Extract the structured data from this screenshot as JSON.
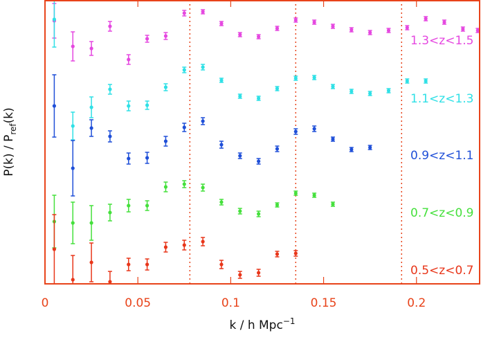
{
  "chart_data": {
    "type": "scatter",
    "xlabel": [
      "k / h Mpc",
      "−1"
    ],
    "ylabel": [
      "P(k) / P",
      "ref",
      "(k)"
    ],
    "xlim": [
      0,
      0.234
    ],
    "ylim": [
      0,
      410
    ],
    "xticks": [
      0,
      0.05,
      0.1,
      0.15,
      0.2
    ],
    "vlines": [
      0.078,
      0.135,
      0.192
    ],
    "axis_color": "#e8431a",
    "series": [
      {
        "name": "1.3<z<1.5",
        "color": "#e548e0",
        "x": [
          0.005,
          0.015,
          0.025,
          0.035,
          0.045,
          0.055,
          0.065,
          0.075,
          0.085,
          0.095,
          0.105,
          0.115,
          0.125,
          0.135,
          0.145,
          0.155,
          0.165,
          0.175,
          0.185,
          0.195,
          0.205,
          0.215,
          0.225,
          0.233
        ],
        "values": [
          380,
          343,
          340,
          372,
          324,
          354,
          358,
          391,
          393,
          376,
          360,
          357,
          369,
          381,
          378,
          372,
          367,
          363,
          366,
          370,
          383,
          378,
          368,
          366
        ],
        "errors": [
          25,
          21,
          10,
          7,
          7,
          5,
          5,
          4,
          3,
          3,
          3,
          3,
          3,
          3,
          3,
          3,
          3,
          3,
          3,
          3,
          3,
          3,
          3,
          3
        ]
      },
      {
        "name": "1.1<z<1.3",
        "color": "#2fe0e6",
        "x": [
          0.005,
          0.015,
          0.025,
          0.035,
          0.045,
          0.055,
          0.065,
          0.075,
          0.085,
          0.095,
          0.105,
          0.115,
          0.125,
          0.135,
          0.145,
          0.155,
          0.165,
          0.175,
          0.185,
          0.195,
          0.205
        ],
        "values": [
          382,
          228,
          255,
          281,
          257,
          258,
          284,
          309,
          313,
          294,
          271,
          268,
          282,
          297,
          298,
          285,
          278,
          275,
          279,
          293,
          293
        ],
        "errors": [
          40,
          20,
          15,
          7,
          7,
          6,
          5,
          4,
          4,
          3,
          3,
          3,
          3,
          3,
          3,
          3,
          3,
          3,
          3,
          3,
          3
        ]
      },
      {
        "name": "0.9<z<1.1",
        "color": "#1f4fd8",
        "x": [
          0.005,
          0.015,
          0.025,
          0.035,
          0.045,
          0.055,
          0.065,
          0.075,
          0.085,
          0.095,
          0.105,
          0.115,
          0.125,
          0.135,
          0.145,
          0.155,
          0.165,
          0.175
        ],
        "values": [
          257,
          167,
          225,
          213,
          181,
          182,
          206,
          226,
          235,
          201,
          185,
          177,
          195,
          220,
          224,
          209,
          194,
          197
        ],
        "errors": [
          45,
          40,
          12,
          8,
          8,
          8,
          7,
          6,
          5,
          5,
          4,
          4,
          4,
          4,
          4,
          3,
          3,
          3
        ]
      },
      {
        "name": "0.7<z<0.9",
        "color": "#45e03c",
        "x": [
          0.005,
          0.015,
          0.025,
          0.035,
          0.045,
          0.055,
          0.065,
          0.075,
          0.085,
          0.095,
          0.105,
          0.115,
          0.125,
          0.135,
          0.145,
          0.155
        ],
        "values": [
          90,
          88,
          88,
          103,
          113,
          113,
          140,
          144,
          139,
          118,
          105,
          101,
          114,
          131,
          128,
          115
        ],
        "errors": [
          38,
          30,
          25,
          12,
          9,
          7,
          7,
          5,
          5,
          4,
          4,
          4,
          3,
          3,
          3,
          3
        ]
      },
      {
        "name": "0.5<z<0.7",
        "color": "#e8361a",
        "x": [
          0.005,
          0.015,
          0.025,
          0.035,
          0.045,
          0.055,
          0.065,
          0.075,
          0.085,
          0.095,
          0.105,
          0.115,
          0.125,
          0.135
        ],
        "values": [
          50,
          6,
          31,
          3,
          28,
          28,
          53,
          56,
          61,
          28,
          13,
          16,
          43,
          44
        ],
        "errors": [
          50,
          35,
          28,
          15,
          9,
          8,
          7,
          7,
          6,
          6,
          5,
          5,
          4,
          4
        ]
      }
    ]
  }
}
